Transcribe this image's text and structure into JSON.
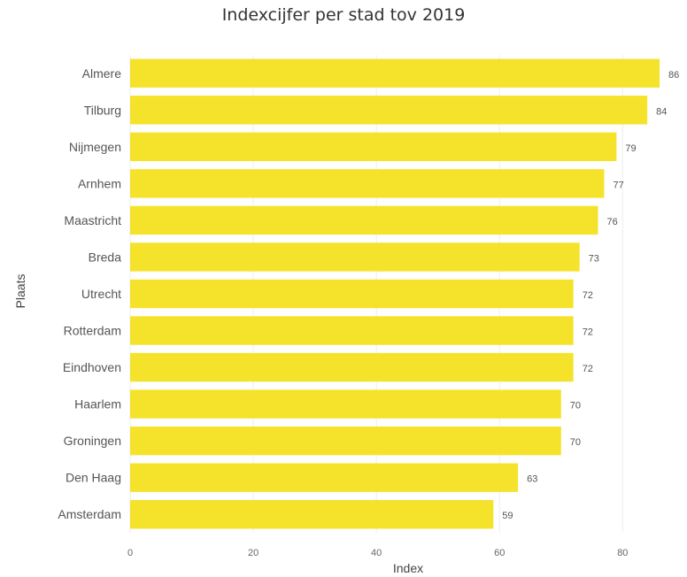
{
  "chart_data": {
    "type": "bar",
    "orientation": "horizontal",
    "title": "Indexcijfer per stad tov 2019",
    "xlabel": "Index",
    "ylabel": "Plaats",
    "xlim": [
      0,
      87
    ],
    "xticks": [
      0,
      20,
      40,
      60,
      80
    ],
    "grid": true,
    "legend": "none",
    "bar_color": "#F5E32B",
    "categories": [
      "Almere",
      "Tilburg",
      "Nijmegen",
      "Arnhem",
      "Maastricht",
      "Breda",
      "Utrecht",
      "Rotterdam",
      "Eindhoven",
      "Haarlem",
      "Groningen",
      "Den Haag",
      "Amsterdam"
    ],
    "values": [
      86,
      84,
      79,
      77,
      76,
      73,
      72,
      72,
      72,
      70,
      70,
      63,
      59
    ],
    "data_labels": [
      "86",
      "84",
      "79",
      "77",
      "76",
      "73",
      "72",
      "72",
      "72",
      "70",
      "70",
      "63",
      "59"
    ]
  }
}
